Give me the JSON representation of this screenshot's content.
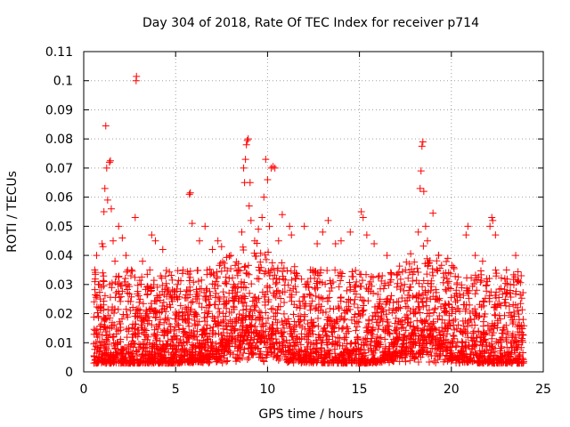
{
  "chart_data": {
    "type": "scatter",
    "title": "Day 304 of 2018, Rate Of TEC Index for receiver p714",
    "xlabel": "GPS time / hours",
    "ylabel": "ROTI / TECUs",
    "xlim": [
      0,
      25
    ],
    "ylim": [
      0,
      0.11
    ],
    "xticks": [
      0,
      5,
      10,
      15,
      20,
      25
    ],
    "xtick_labels": [
      "0",
      "5",
      "10",
      "15",
      "20",
      "25"
    ],
    "yticks": [
      0,
      0.01,
      0.02,
      0.03,
      0.04,
      0.05,
      0.06,
      0.07,
      0.08,
      0.09,
      0.1,
      0.11
    ],
    "ytick_labels": [
      "0",
      "0.01",
      "0.02",
      "0.03",
      "0.04",
      "0.05",
      "0.06",
      "0.07",
      "0.08",
      "0.09",
      "0.1",
      "0.11"
    ],
    "grid": true,
    "marker": "+",
    "color": "#ff0000",
    "series": [
      {
        "name": "ROTI",
        "points": [
          [
            0.6,
            0.035
          ],
          [
            0.7,
            0.04
          ],
          [
            0.8,
            0.03
          ],
          [
            0.9,
            0.025
          ],
          [
            1.0,
            0.044
          ],
          [
            1.05,
            0.043
          ],
          [
            1.1,
            0.055
          ],
          [
            1.15,
            0.063
          ],
          [
            1.2,
            0.0845
          ],
          [
            1.25,
            0.07
          ],
          [
            1.3,
            0.059
          ],
          [
            1.4,
            0.072
          ],
          [
            1.45,
            0.0725
          ],
          [
            1.5,
            0.056
          ],
          [
            1.6,
            0.045
          ],
          [
            1.7,
            0.038
          ],
          [
            1.9,
            0.05
          ],
          [
            2.1,
            0.046
          ],
          [
            2.3,
            0.04
          ],
          [
            2.6,
            0.035
          ],
          [
            2.8,
            0.053
          ],
          [
            2.85,
            0.1
          ],
          [
            2.87,
            0.1015
          ],
          [
            3.2,
            0.038
          ],
          [
            3.7,
            0.047
          ],
          [
            3.9,
            0.045
          ],
          [
            4.3,
            0.042
          ],
          [
            5.1,
            0.03
          ],
          [
            5.4,
            0.035
          ],
          [
            5.75,
            0.061
          ],
          [
            5.8,
            0.0615
          ],
          [
            5.9,
            0.051
          ],
          [
            6.3,
            0.045
          ],
          [
            6.6,
            0.05
          ],
          [
            7.0,
            0.042
          ],
          [
            7.3,
            0.045
          ],
          [
            7.5,
            0.043
          ],
          [
            8.0,
            0.04
          ],
          [
            8.4,
            0.035
          ],
          [
            8.6,
            0.048
          ],
          [
            8.7,
            0.07
          ],
          [
            8.75,
            0.065
          ],
          [
            8.8,
            0.073
          ],
          [
            8.85,
            0.078
          ],
          [
            8.9,
            0.0795
          ],
          [
            8.95,
            0.08
          ],
          [
            9.0,
            0.057
          ],
          [
            9.05,
            0.065
          ],
          [
            9.1,
            0.052
          ],
          [
            9.3,
            0.045
          ],
          [
            9.5,
            0.049
          ],
          [
            9.7,
            0.053
          ],
          [
            9.8,
            0.06
          ],
          [
            9.9,
            0.073
          ],
          [
            10.0,
            0.066
          ],
          [
            10.1,
            0.05
          ],
          [
            10.2,
            0.07
          ],
          [
            10.3,
            0.0705
          ],
          [
            10.4,
            0.07
          ],
          [
            10.6,
            0.045
          ],
          [
            10.8,
            0.054
          ],
          [
            11.2,
            0.05
          ],
          [
            11.3,
            0.047
          ],
          [
            12.0,
            0.05
          ],
          [
            12.7,
            0.044
          ],
          [
            13.0,
            0.048
          ],
          [
            13.3,
            0.052
          ],
          [
            13.7,
            0.044
          ],
          [
            14.0,
            0.045
          ],
          [
            14.5,
            0.048
          ],
          [
            15.1,
            0.055
          ],
          [
            15.2,
            0.053
          ],
          [
            15.4,
            0.047
          ],
          [
            15.8,
            0.044
          ],
          [
            16.5,
            0.04
          ],
          [
            17.5,
            0.035
          ],
          [
            18.2,
            0.048
          ],
          [
            18.3,
            0.063
          ],
          [
            18.35,
            0.069
          ],
          [
            18.4,
            0.0775
          ],
          [
            18.45,
            0.079
          ],
          [
            18.5,
            0.062
          ],
          [
            18.6,
            0.05
          ],
          [
            18.7,
            0.045
          ],
          [
            19.0,
            0.0545
          ],
          [
            19.3,
            0.04
          ],
          [
            19.7,
            0.034
          ],
          [
            20.3,
            0.03
          ],
          [
            20.8,
            0.047
          ],
          [
            20.9,
            0.05
          ],
          [
            21.3,
            0.04
          ],
          [
            21.7,
            0.038
          ],
          [
            22.1,
            0.05
          ],
          [
            22.2,
            0.053
          ],
          [
            22.25,
            0.052
          ],
          [
            22.4,
            0.047
          ],
          [
            23.0,
            0.035
          ],
          [
            23.5,
            0.04
          ],
          [
            23.8,
            0.033
          ]
        ]
      }
    ]
  }
}
